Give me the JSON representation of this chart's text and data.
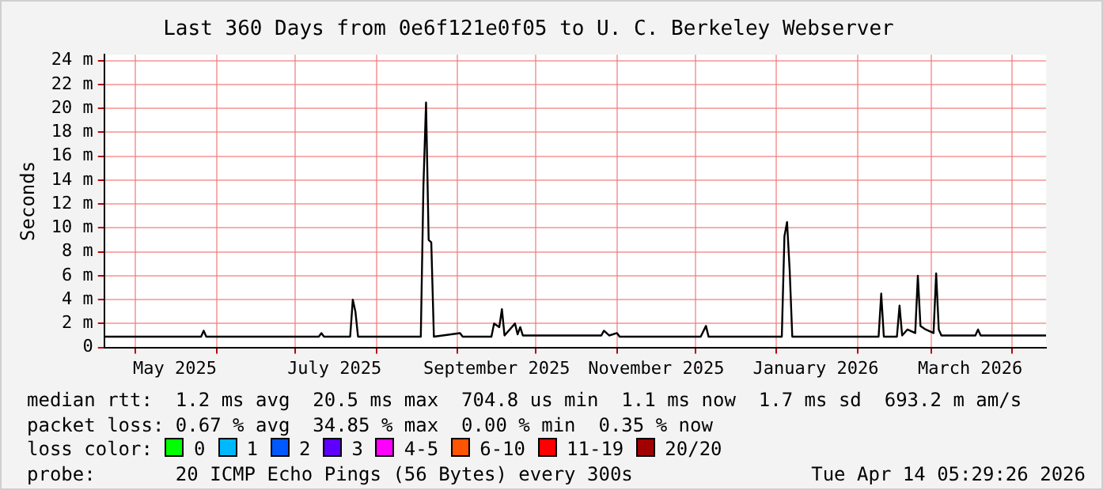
{
  "chart_data": {
    "type": "line",
    "title": "Last 360 Days from 0e6f121e0f05 to U. C. Berkeley Webserver",
    "ylabel": "Seconds",
    "x": [
      "2025-04-19",
      "2025-05-26",
      "2025-05-27",
      "2025-05-28",
      "2025-07-10",
      "2025-07-11",
      "2025-07-12",
      "2025-07-22",
      "2025-07-23",
      "2025-07-24",
      "2025-07-25",
      "2025-08-18",
      "2025-08-19",
      "2025-08-20",
      "2025-08-21",
      "2025-08-22",
      "2025-08-23",
      "2025-09-02",
      "2025-09-03",
      "2025-09-14",
      "2025-09-15",
      "2025-09-17",
      "2025-09-18",
      "2025-09-19",
      "2025-09-23",
      "2025-09-24",
      "2025-09-25",
      "2025-09-26",
      "2025-10-26",
      "2025-10-27",
      "2025-10-29",
      "2025-11-01",
      "2025-11-02",
      "2025-12-03",
      "2025-12-05",
      "2025-12-06",
      "2026-01-03",
      "2026-01-04",
      "2026-01-05",
      "2026-01-06",
      "2026-01-07",
      "2026-02-09",
      "2026-02-10",
      "2026-02-11",
      "2026-02-16",
      "2026-02-17",
      "2026-02-18",
      "2026-02-20",
      "2026-02-23",
      "2026-02-24",
      "2026-02-25",
      "2026-02-27",
      "2026-03-02",
      "2026-03-03",
      "2026-03-04",
      "2026-03-05",
      "2026-03-18",
      "2026-03-19",
      "2026-03-20",
      "2026-04-14"
    ],
    "series": [
      {
        "color": "#000000",
        "values": [
          0.9,
          0.9,
          1.4,
          0.9,
          0.9,
          1.2,
          0.9,
          0.9,
          4.0,
          3.0,
          0.9,
          0.9,
          13.5,
          20.5,
          9.0,
          8.8,
          0.9,
          1.2,
          0.9,
          0.9,
          2.0,
          1.7,
          3.2,
          1.0,
          2.0,
          1.1,
          1.7,
          1.0,
          1.0,
          1.4,
          1.0,
          1.2,
          0.9,
          0.9,
          1.8,
          0.9,
          0.9,
          9.3,
          10.5,
          6.5,
          0.9,
          0.9,
          4.5,
          0.9,
          0.9,
          3.5,
          1.0,
          1.5,
          1.2,
          6.0,
          1.8,
          1.5,
          1.2,
          6.2,
          1.5,
          1.0,
          1.0,
          1.5,
          1.0,
          1.0
        ]
      },
      {
        "name": "0",
        "color": "#00ff00",
        "values": [
          null,
          null,
          null,
          null,
          null,
          null,
          null,
          null,
          null,
          null,
          null,
          null,
          null,
          null,
          null,
          null,
          null,
          null,
          null,
          null,
          null,
          null,
          null,
          null,
          null,
          null,
          null,
          null,
          null,
          null,
          null,
          null,
          null,
          null,
          null,
          null,
          null,
          null,
          null,
          null,
          null,
          null,
          null,
          null,
          null,
          null,
          null,
          null,
          null,
          null,
          null,
          null,
          null,
          null,
          null,
          null,
          null,
          null,
          null,
          null
        ]
      },
      {
        "name": "1",
        "color": "#00b8ff",
        "values": [
          null,
          null,
          null,
          null,
          null,
          null,
          null,
          null,
          null,
          null,
          null,
          null,
          null,
          null,
          null,
          null,
          null,
          null,
          null,
          null,
          null,
          null,
          null,
          null,
          null,
          null,
          null,
          null,
          null,
          null,
          null,
          null,
          null,
          null,
          null,
          null,
          null,
          null,
          null,
          null,
          null,
          null,
          null,
          null,
          null,
          null,
          null,
          null,
          null,
          null,
          null,
          null,
          null,
          null,
          null,
          null,
          null,
          null,
          null,
          null
        ]
      },
      {
        "name": "2",
        "color": "#0059ff",
        "values": [
          null,
          null,
          null,
          null,
          null,
          null,
          null,
          null,
          null,
          null,
          null,
          null,
          null,
          null,
          null,
          null,
          null,
          null,
          null,
          null,
          null,
          null,
          null,
          null,
          null,
          null,
          null,
          null,
          null,
          null,
          null,
          null,
          null,
          null,
          null,
          null,
          null,
          null,
          null,
          null,
          null,
          null,
          null,
          null,
          null,
          null,
          null,
          null,
          null,
          null,
          null,
          null,
          null,
          null,
          null,
          null,
          null,
          null,
          null,
          null
        ]
      },
      {
        "name": "3",
        "color": "#5e00ff",
        "values": [
          null,
          null,
          null,
          null,
          null,
          null,
          null,
          null,
          null,
          null,
          null,
          null,
          null,
          null,
          null,
          null,
          null,
          null,
          null,
          null,
          null,
          null,
          null,
          null,
          null,
          null,
          null,
          null,
          null,
          null,
          null,
          null,
          null,
          null,
          null,
          null,
          null,
          null,
          null,
          null,
          null,
          null,
          null,
          null,
          null,
          null,
          null,
          null,
          null,
          null,
          null,
          null,
          null,
          null,
          null,
          null,
          null,
          null,
          null,
          null
        ]
      },
      {
        "name": "4-5",
        "color": "#ff00ff",
        "values": [
          null,
          null,
          null,
          null,
          null,
          null,
          null,
          null,
          null,
          null,
          null,
          null,
          null,
          null,
          null,
          null,
          null,
          null,
          null,
          null,
          null,
          null,
          null,
          null,
          null,
          null,
          null,
          null,
          null,
          null,
          null,
          null,
          null,
          null,
          null,
          null,
          null,
          null,
          null,
          null,
          null,
          null,
          null,
          null,
          null,
          null,
          null,
          null,
          null,
          null,
          null,
          null,
          null,
          null,
          null,
          null,
          null,
          null,
          null,
          null
        ]
      },
      {
        "name": "6-10",
        "color": "#ff5500",
        "values": [
          null,
          null,
          null,
          null,
          null,
          null,
          null,
          null,
          null,
          null,
          null,
          null,
          null,
          null,
          null,
          null,
          null,
          null,
          null,
          null,
          null,
          null,
          null,
          null,
          null,
          null,
          null,
          null,
          null,
          null,
          null,
          null,
          null,
          null,
          null,
          null,
          null,
          null,
          null,
          null,
          null,
          null,
          null,
          null,
          null,
          null,
          null,
          null,
          null,
          null,
          null,
          null,
          null,
          null,
          null,
          null,
          null,
          null,
          null,
          null
        ]
      },
      {
        "name": "11-19",
        "color": "#ff0000",
        "values": [
          null,
          null,
          null,
          null,
          null,
          null,
          null,
          null,
          null,
          null,
          null,
          null,
          null,
          null,
          null,
          null,
          null,
          null,
          null,
          null,
          null,
          null,
          null,
          null,
          null,
          null,
          null,
          null,
          null,
          null,
          null,
          null,
          null,
          null,
          null,
          null,
          null,
          null,
          null,
          null,
          null,
          null,
          null,
          null,
          null,
          null,
          null,
          null,
          null,
          null,
          null,
          null,
          null,
          null,
          null,
          null,
          null,
          null,
          null,
          null
        ]
      },
      {
        "name": "20/20",
        "color": "#a10000",
        "values": [
          null,
          null,
          null,
          null,
          null,
          null,
          null,
          null,
          null,
          null,
          null,
          null,
          null,
          null,
          null,
          null,
          null,
          null,
          null,
          null,
          null,
          null,
          null,
          null,
          null,
          null,
          null,
          null,
          null,
          null,
          null,
          null,
          null,
          null,
          null,
          null,
          null,
          null,
          null,
          null,
          null,
          null,
          null,
          null,
          null,
          null,
          null,
          null,
          null,
          null,
          null,
          null,
          null,
          null,
          null,
          null,
          null,
          null,
          null,
          null
        ]
      }
    ],
    "legend_title": "loss color:",
    "legend": "bottom",
    "grid": true,
    "marker": "none",
    "xlim": [
      "2025-04-19",
      "2026-04-14"
    ],
    "xticks": [
      {
        "value": "2025-05-01",
        "label": null
      },
      {
        "value": "2025-05-16",
        "label": "May 2025"
      },
      {
        "value": "2025-06-01",
        "label": null
      },
      {
        "value": "2025-07-01",
        "label": null
      },
      {
        "value": "2025-07-16",
        "label": "July 2025"
      },
      {
        "value": "2025-08-01",
        "label": null
      },
      {
        "value": "2025-09-01",
        "label": null
      },
      {
        "value": "2025-09-16",
        "label": "September 2025"
      },
      {
        "value": "2025-10-01",
        "label": null
      },
      {
        "value": "2025-11-01",
        "label": null
      },
      {
        "value": "2025-11-16",
        "label": "November 2025"
      },
      {
        "value": "2025-12-01",
        "label": null
      },
      {
        "value": "2026-01-01",
        "label": null
      },
      {
        "value": "2026-01-16",
        "label": "January 2026"
      },
      {
        "value": "2026-02-01",
        "label": null
      },
      {
        "value": "2026-03-01",
        "label": null
      },
      {
        "value": "2026-03-16",
        "label": "March 2026"
      },
      {
        "value": "2026-04-01",
        "label": null
      }
    ],
    "ylim": [
      0,
      24.5
    ],
    "yticks": [
      0,
      {
        "value": 2,
        "label": "2 m"
      },
      {
        "value": 4,
        "label": "4 m"
      },
      {
        "value": 6,
        "label": "6 m"
      },
      {
        "value": 8,
        "label": "8 m"
      },
      {
        "value": 10,
        "label": "10 m"
      },
      {
        "value": 12,
        "label": "12 m"
      },
      {
        "value": 14,
        "label": "14 m"
      },
      {
        "value": 16,
        "label": "16 m"
      },
      {
        "value": 18,
        "label": "18 m"
      },
      {
        "value": 20,
        "label": "20 m"
      },
      {
        "value": 22,
        "label": "22 m"
      },
      {
        "value": 24,
        "label": "24 m"
      }
    ],
    "annotations": [
      "median rtt:  1.2 ms avg  20.5 ms max  704.8 us min  1.1 ms now  1.7 ms sd  693.2 m am/s",
      "packet loss: 0.67 % avg  34.85 % max  0.00 % min  0.35 % now",
      "probe:       20 ICMP Echo Pings (56 Bytes) every 300s",
      "Tue Apr 14 05:29:26 2026"
    ]
  }
}
